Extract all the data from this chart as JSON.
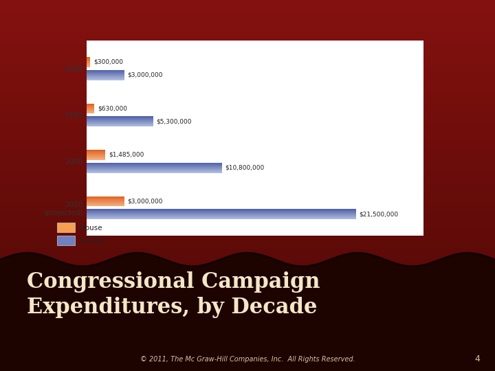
{
  "decades": [
    "1980",
    "1990",
    "2000",
    "2010\n(projected)"
  ],
  "house_values": [
    300000,
    630000,
    1485000,
    3000000
  ],
  "senate_values": [
    3000000,
    5300000,
    10800000,
    21500000
  ],
  "house_labels": [
    "$300,000",
    "$630,000",
    "$1,485,000",
    "$3,000,000"
  ],
  "senate_labels": [
    "$3,000,000",
    "$5,300,000",
    "$10,800,000",
    "$21,500,000"
  ],
  "house_color_top": "#f5b080",
  "house_color_bottom": "#e06020",
  "senate_color_top": "#b0bede",
  "senate_color_bottom": "#5060a8",
  "chart_bg": "#ffffff",
  "title_text": "Congressional Campaign\nExpenditures, by Decade",
  "title_color": "#f5e6c8",
  "footer_text": "© 2011, The Mc Graw-Hill Companies, Inc.  All Rights Reserved.",
  "footer_color": "#d4c4a0",
  "page_number": "4",
  "legend_house": "House",
  "legend_senate": "Senate",
  "max_value": 21500000
}
